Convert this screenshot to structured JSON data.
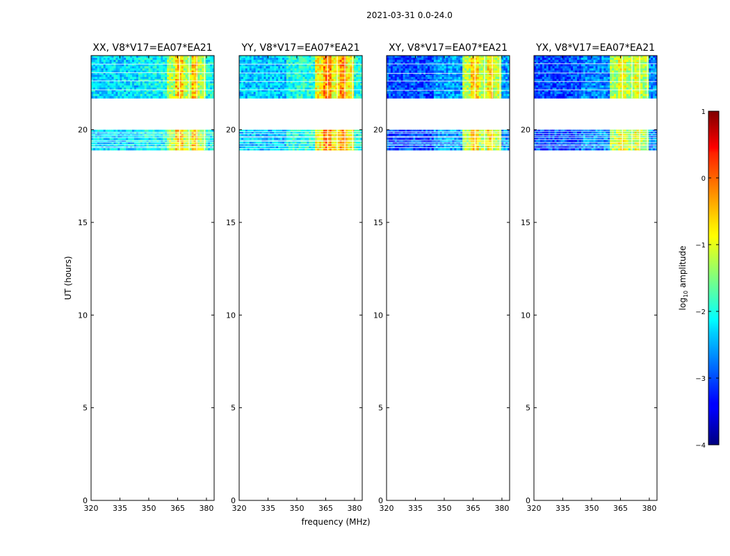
{
  "chart_data": {
    "type": "heatmap",
    "title": "2021-03-31 0.0-24.0",
    "xlabel": "frequency (MHz)",
    "ylabel": "UT (hours)",
    "xlim": [
      320,
      384
    ],
    "ylim": [
      0,
      24
    ],
    "x_ticks": [
      "320",
      "335",
      "350",
      "365",
      "380"
    ],
    "x_tick_values": [
      320,
      335,
      350,
      365,
      380
    ],
    "y_ticks": [
      "0",
      "5",
      "10",
      "15",
      "20"
    ],
    "y_tick_values": [
      0,
      5,
      10,
      15,
      20
    ],
    "data_time_ranges_hours": [
      [
        18.9,
        20.0
      ],
      [
        21.7,
        24.0
      ]
    ],
    "panels": [
      {
        "title": "XX, V8*V17=EA07*EA21",
        "band_levels": [
          -2.3,
          -2.1,
          -1.3,
          -0.6
        ],
        "high_band_mhz": [
          360,
          380
        ],
        "low_band_mhz": [
          320,
          360
        ]
      },
      {
        "title": "YY, V8*V17=EA07*EA21",
        "band_levels": [
          -2.4,
          -2.0,
          -0.9,
          -0.3
        ],
        "high_band_mhz": [
          360,
          380
        ],
        "low_band_mhz": [
          320,
          360
        ]
      },
      {
        "title": "XY, V8*V17=EA07*EA21",
        "band_levels": [
          -3.0,
          -2.6,
          -1.2,
          -0.7
        ],
        "high_band_mhz": [
          360,
          380
        ],
        "low_band_mhz": [
          320,
          360
        ]
      },
      {
        "title": "YX, V8*V17=EA07*EA21",
        "band_levels": [
          -3.0,
          -2.7,
          -1.3,
          -1.0
        ],
        "high_band_mhz": [
          360,
          380
        ],
        "low_band_mhz": [
          320,
          360
        ]
      }
    ],
    "colorbar": {
      "label": "log10 amplitude",
      "label_main": "log",
      "label_sub": "10",
      "label_rest": " amplitude",
      "ticks": [
        "−4",
        "−3",
        "−2",
        "−1",
        "0",
        "1"
      ],
      "tick_values": [
        -4,
        -3,
        -2,
        -1,
        0,
        1
      ],
      "range": [
        -4,
        1
      ],
      "colormap": "jet"
    }
  }
}
